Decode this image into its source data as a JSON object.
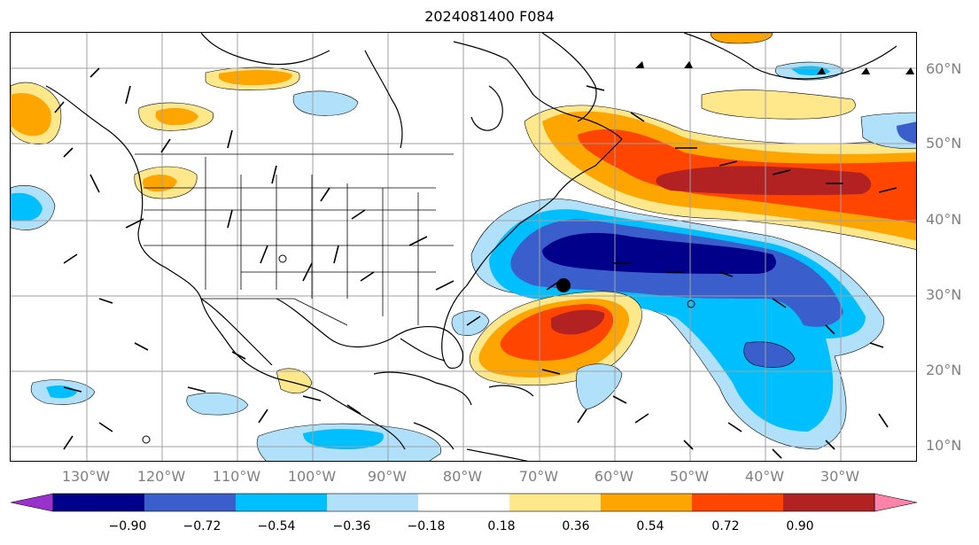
{
  "title": "2024081400 F084",
  "lat_labels": [
    "60°N",
    "50°N",
    "40°N",
    "30°N",
    "20°N",
    "10°N"
  ],
  "lon_labels": [
    "130°W",
    "120°W",
    "110°W",
    "100°W",
    "90°W",
    "80°W",
    "70°W",
    "60°W",
    "50°W",
    "40°W",
    "30°W"
  ],
  "colorbar": {
    "ticks": [
      "−0.90",
      "−0.72",
      "−0.54",
      "−0.36",
      "−0.18",
      "0.18",
      "0.36",
      "0.54",
      "0.72",
      "0.90"
    ],
    "colors": [
      "#9932cc",
      "#00008b",
      "#3a5fcd",
      "#00bfff",
      "#b0e0fa",
      "#ffffff",
      "#ffe88c",
      "#ffa500",
      "#ff4500",
      "#b22222",
      "#ff82ab"
    ]
  },
  "map": {
    "gridline_color": "#a0a0a0",
    "coast_color": "#000000",
    "storm_marker": "black-dot"
  }
}
